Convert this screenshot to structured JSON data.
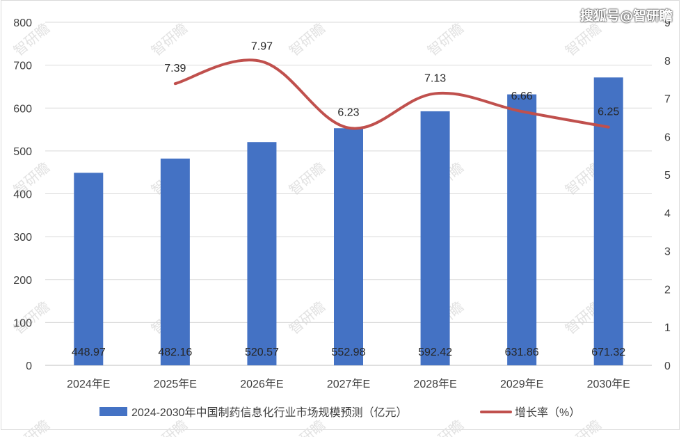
{
  "watermark": {
    "top_right": "搜狐号@智研瞻",
    "tile": "智研瞻"
  },
  "chart_data": {
    "type": "bar+line",
    "categories": [
      "2024年E",
      "2025年E",
      "2026年E",
      "2027年E",
      "2028年E",
      "2029年E",
      "2030年E"
    ],
    "series": [
      {
        "name": "2024-2030年中国制药信息化行业市场规模预测（亿元）",
        "type": "bar",
        "axis": "left",
        "color": "#4472c4",
        "values": [
          448.97,
          482.16,
          520.57,
          552.98,
          592.42,
          631.86,
          671.32
        ],
        "labels": [
          "448.97",
          "482.16",
          "520.57",
          "552.98",
          "592.42",
          "631.86",
          "671.32"
        ]
      },
      {
        "name": "增长率（%）",
        "type": "line",
        "axis": "right",
        "color": "#c0504d",
        "values": [
          null,
          7.39,
          7.97,
          6.23,
          7.13,
          6.66,
          6.25
        ],
        "labels": [
          null,
          "7.39",
          "7.97",
          "6.23",
          "7.13",
          "6.66",
          "6.25"
        ]
      }
    ],
    "y_left": {
      "range": [
        0,
        800
      ],
      "ticks": [
        "0",
        "100",
        "200",
        "300",
        "400",
        "500",
        "600",
        "700",
        "800"
      ]
    },
    "y_right": {
      "range": [
        0,
        9
      ],
      "ticks": [
        "0",
        "1",
        "2",
        "3",
        "4",
        "5",
        "6",
        "7",
        "8",
        "9"
      ]
    },
    "grid": true,
    "legend_position": "bottom"
  }
}
